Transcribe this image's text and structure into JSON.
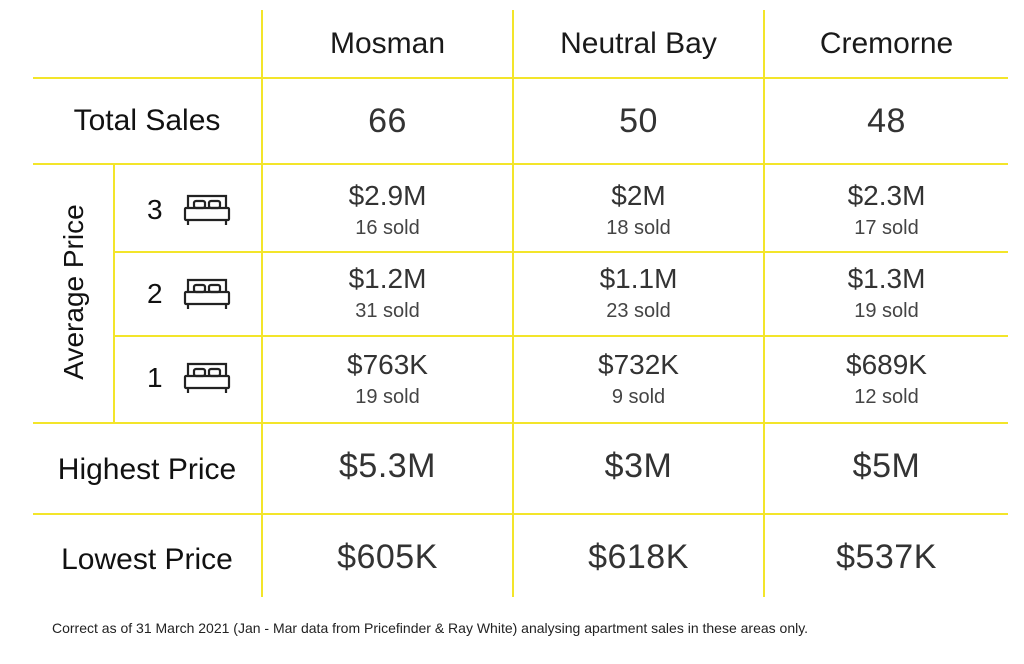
{
  "columns": [
    "Mosman",
    "Neutral Bay",
    "Cremorne"
  ],
  "total_sales": {
    "label": "Total Sales",
    "values": [
      "66",
      "50",
      "48"
    ]
  },
  "average_price": {
    "label": "Average Price",
    "rows": [
      {
        "bedrooms": "3",
        "icon": "bed-icon",
        "cells": [
          {
            "price": "$2.9M",
            "sold": "16 sold"
          },
          {
            "price": "$2M",
            "sold": "18 sold"
          },
          {
            "price": "$2.3M",
            "sold": "17 sold"
          }
        ]
      },
      {
        "bedrooms": "2",
        "icon": "bed-icon",
        "cells": [
          {
            "price": "$1.2M",
            "sold": "31 sold"
          },
          {
            "price": "$1.1M",
            "sold": "23 sold"
          },
          {
            "price": "$1.3M",
            "sold": "19 sold"
          }
        ]
      },
      {
        "bedrooms": "1",
        "icon": "bed-icon",
        "cells": [
          {
            "price": "$763K",
            "sold": "19 sold"
          },
          {
            "price": "$732K",
            "sold": "9 sold"
          },
          {
            "price": "$689K",
            "sold": "12 sold"
          }
        ]
      }
    ]
  },
  "highest_price": {
    "label": "Highest Price",
    "values": [
      "$5.3M",
      "$3M",
      "$5M"
    ]
  },
  "lowest_price": {
    "label": "Lowest Price",
    "values": [
      "$605K",
      "$618K",
      "$537K"
    ]
  },
  "footnote": "Correct as of 31 March 2021 (Jan - Mar data from Pricefinder & Ray White) analysing apartment sales in these areas only.",
  "colors": {
    "grid": "#f3e52a",
    "text": "#1e1e1e"
  }
}
